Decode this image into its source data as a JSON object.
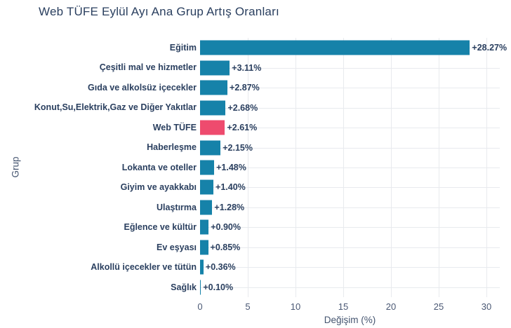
{
  "chart_data": {
    "type": "bar",
    "orientation": "horizontal",
    "title": "Web TÜFE Eylül Ayı Ana Grup Artış Oranları",
    "xlabel": "Değişim (%)",
    "ylabel": "Grup",
    "categories": [
      "Eğitim",
      "Çeşitli mal ve hizmetler",
      "Gıda ve alkolsüz içecekler",
      "Konut,Su,Elektrik,Gaz ve Diğer Yakıtlar",
      "Web TÜFE",
      "Haberleşme",
      "Lokanta ve oteller",
      "Giyim ve ayakkabı",
      "Ulaştırma",
      "Eğlence ve kültür",
      "Ev eşyası",
      "Alkollü içecekler ve tütün",
      "Sağlık"
    ],
    "values": [
      28.27,
      3.11,
      2.87,
      2.68,
      2.61,
      2.15,
      1.48,
      1.4,
      1.28,
      0.9,
      0.85,
      0.36,
      0.1
    ],
    "value_labels": [
      "+28.27%",
      "+3.11%",
      "+2.87%",
      "+2.68%",
      "+2.61%",
      "+2.15%",
      "+1.48%",
      "+1.40%",
      "+1.28%",
      "+0.90%",
      "+0.85%",
      "+0.36%",
      "+0.10%"
    ],
    "highlight_category": "Web TÜFE",
    "xticks": [
      0,
      5,
      10,
      15,
      20,
      25,
      30
    ],
    "xlim": [
      0,
      31.4
    ],
    "grid": true,
    "legend": false,
    "colors": {
      "bar": "#1682a9",
      "highlight": "#ee4b6e",
      "grid_line": "#e8eaee",
      "label_text": "#2a3f5f",
      "tick_text": "#4a5874",
      "background": "#ffffff"
    }
  }
}
